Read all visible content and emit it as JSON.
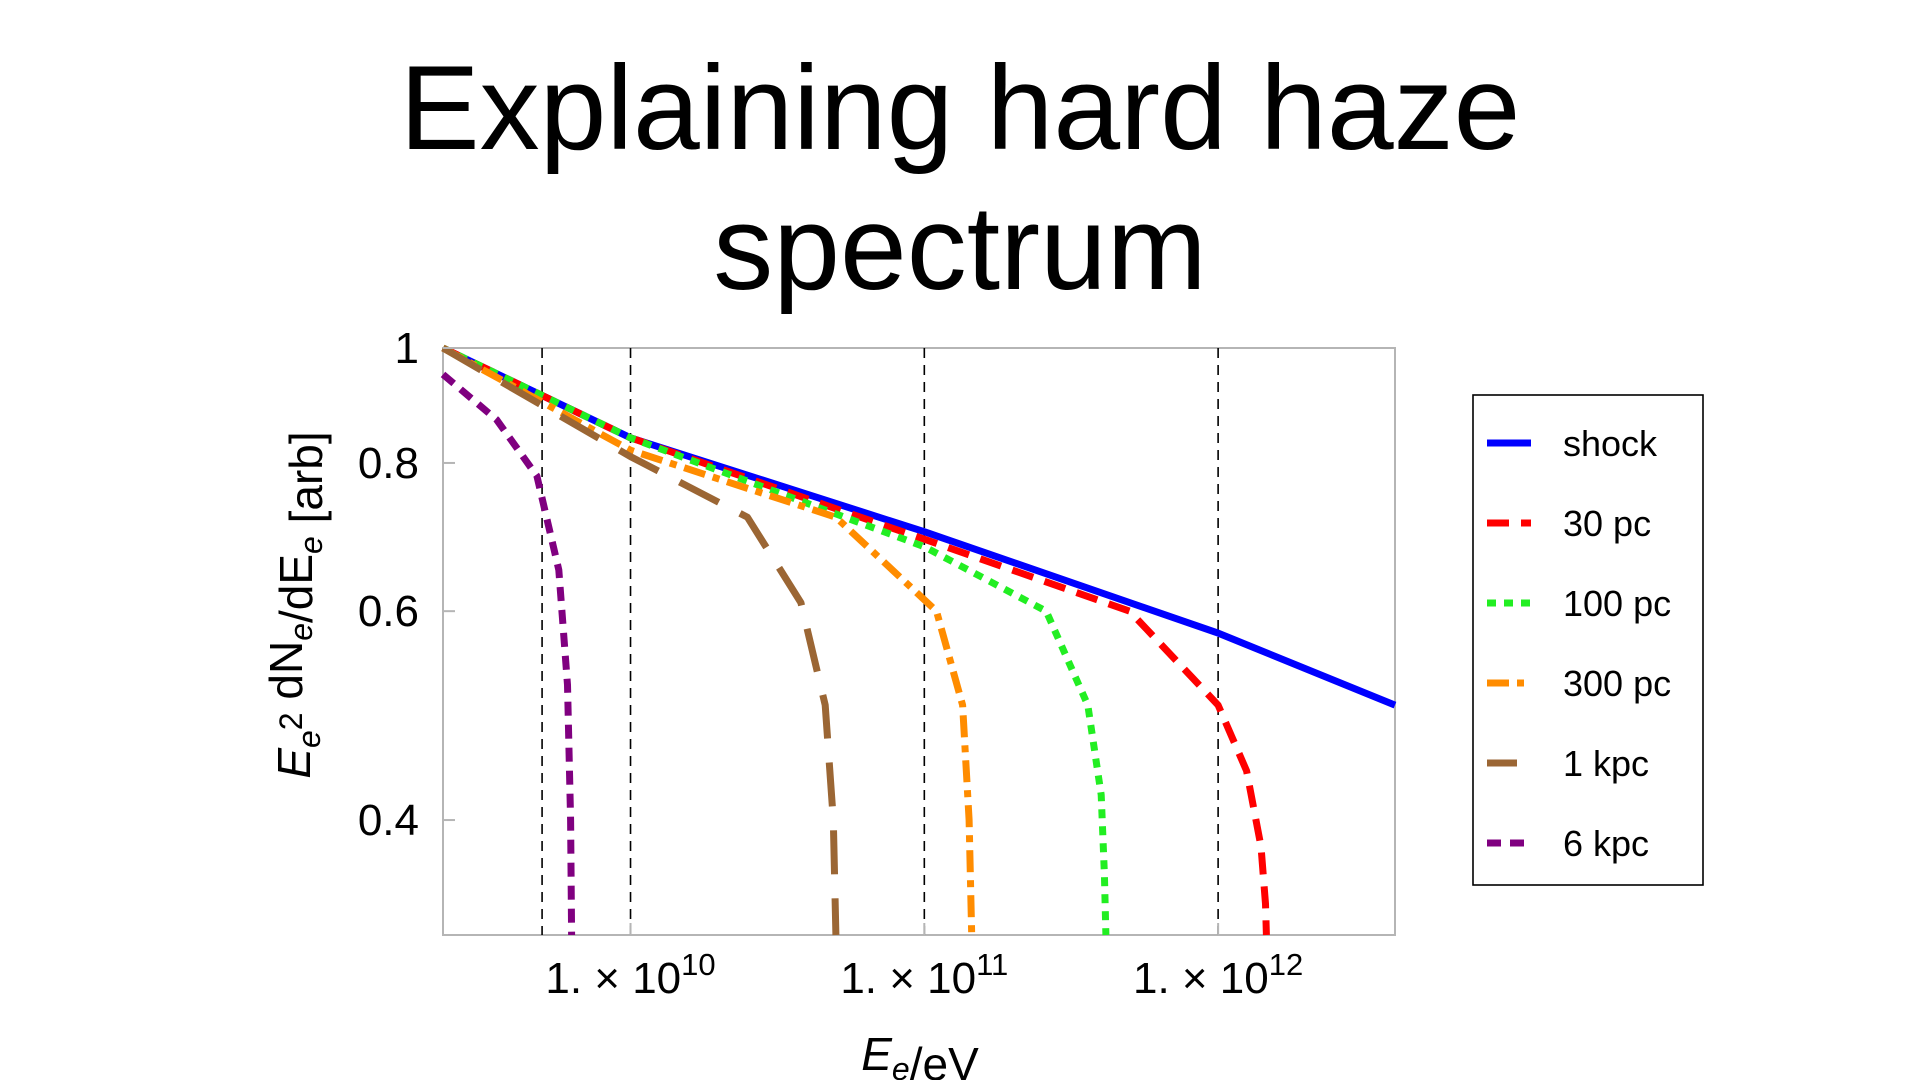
{
  "slide": {
    "title_line1": "Explaining hard haze",
    "title_line2": "spectrum"
  },
  "chart_data": {
    "type": "line",
    "title": "Explaining hard haze spectrum",
    "xlabel": "E_e/eV",
    "ylabel": "E_e^2 dN_e/dE_e [arb]",
    "x_scale": "log",
    "y_scale": "log",
    "xlim": [
      2300000000,
      4000000000000
    ],
    "ylim": [
      0.32,
      1.0
    ],
    "grid": false,
    "legend_position": "right",
    "x_ticks": [
      {
        "value": 10000000000,
        "mantissa": "1. × 10",
        "exponent": "10"
      },
      {
        "value": 100000000000,
        "mantissa": "1. × 10",
        "exponent": "11"
      },
      {
        "value": 1000000000000,
        "mantissa": "1. × 10",
        "exponent": "12"
      }
    ],
    "y_ticks": [
      {
        "value": 0.4,
        "label": "0.4"
      },
      {
        "value": 0.6,
        "label": "0.6"
      },
      {
        "value": 0.8,
        "label": "0.8"
      },
      {
        "value": 1.0,
        "label": "1"
      }
    ],
    "vertical_reference_lines": [
      5000000000,
      10000000000,
      100000000000,
      1000000000000
    ],
    "series": [
      {
        "name": "shock",
        "color": "#0000ff",
        "dash": "solid",
        "x": [
          2300000000,
          10000000000,
          100000000000,
          1000000000000,
          4000000000000
        ],
        "y": [
          1.0,
          0.84,
          0.7,
          0.575,
          0.5
        ]
      },
      {
        "name": "30 pc",
        "color": "#ff0000",
        "dash": "dash",
        "x": [
          2300000000,
          10000000000,
          100000000000,
          500000000000,
          1000000000000,
          1250000000000,
          1400000000000,
          1450000000000,
          1460000000000
        ],
        "y": [
          1.0,
          0.84,
          0.69,
          0.6,
          0.5,
          0.44,
          0.38,
          0.34,
          0.32
        ]
      },
      {
        "name": "100 pc",
        "color": "#22ee22",
        "dash": "dot",
        "x": [
          2300000000,
          10000000000,
          100000000000,
          260000000000,
          360000000000,
          400000000000,
          410000000000,
          415000000000
        ],
        "y": [
          1.0,
          0.84,
          0.68,
          0.6,
          0.5,
          0.42,
          0.36,
          0.32
        ]
      },
      {
        "name": "300 pc",
        "color": "#ff8c00",
        "dash": "dashdot",
        "x": [
          2300000000,
          10000000000,
          50000000000,
          110000000000,
          135000000000,
          142000000000,
          145000000000
        ],
        "y": [
          1.0,
          0.82,
          0.72,
          0.6,
          0.5,
          0.4,
          0.32
        ]
      },
      {
        "name": "1 kpc",
        "color": "#9b6634",
        "dash": "longdash",
        "x": [
          2300000000,
          10000000000,
          25000000000,
          38000000000,
          46000000000,
          49000000000,
          50000000000
        ],
        "y": [
          1.0,
          0.81,
          0.72,
          0.61,
          0.5,
          0.4,
          0.32
        ]
      },
      {
        "name": "6 kpc",
        "color": "#800080",
        "dash": "shortdash",
        "x": [
          2300000000,
          3500000000,
          4800000000,
          5700000000,
          6100000000,
          6250000000,
          6300000000
        ],
        "y": [
          0.95,
          0.87,
          0.78,
          0.65,
          0.52,
          0.4,
          0.32
        ]
      }
    ]
  }
}
